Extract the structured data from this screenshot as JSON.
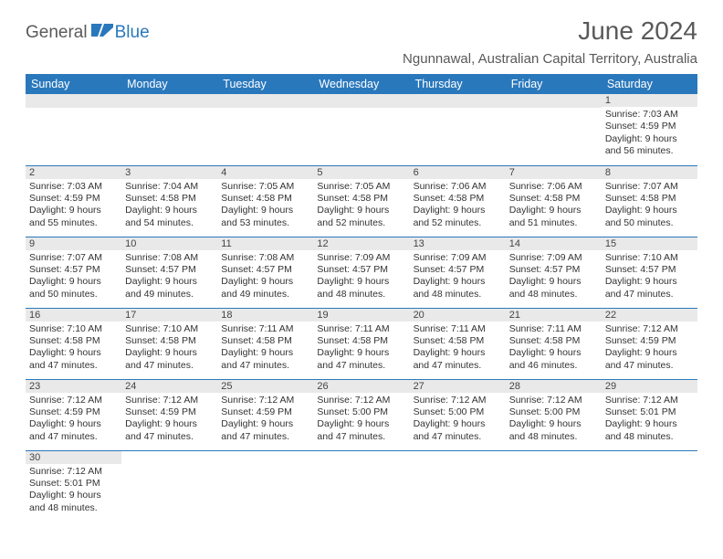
{
  "logo": {
    "part1": "General",
    "part2": "Blue"
  },
  "title": "June 2024",
  "location": "Ngunnawal, Australian Capital Territory, Australia",
  "colors": {
    "header_bg": "#2a78bc",
    "header_text": "#ffffff",
    "daynum_bg": "#e9e9e9",
    "row_border": "#2a78bc",
    "title_color": "#595959",
    "body_text": "#333333"
  },
  "day_headers": [
    "Sunday",
    "Monday",
    "Tuesday",
    "Wednesday",
    "Thursday",
    "Friday",
    "Saturday"
  ],
  "weeks": [
    [
      null,
      null,
      null,
      null,
      null,
      null,
      {
        "n": "1",
        "sunrise": "Sunrise: 7:03 AM",
        "sunset": "Sunset: 4:59 PM",
        "dl1": "Daylight: 9 hours",
        "dl2": "and 56 minutes."
      }
    ],
    [
      {
        "n": "2",
        "sunrise": "Sunrise: 7:03 AM",
        "sunset": "Sunset: 4:59 PM",
        "dl1": "Daylight: 9 hours",
        "dl2": "and 55 minutes."
      },
      {
        "n": "3",
        "sunrise": "Sunrise: 7:04 AM",
        "sunset": "Sunset: 4:58 PM",
        "dl1": "Daylight: 9 hours",
        "dl2": "and 54 minutes."
      },
      {
        "n": "4",
        "sunrise": "Sunrise: 7:05 AM",
        "sunset": "Sunset: 4:58 PM",
        "dl1": "Daylight: 9 hours",
        "dl2": "and 53 minutes."
      },
      {
        "n": "5",
        "sunrise": "Sunrise: 7:05 AM",
        "sunset": "Sunset: 4:58 PM",
        "dl1": "Daylight: 9 hours",
        "dl2": "and 52 minutes."
      },
      {
        "n": "6",
        "sunrise": "Sunrise: 7:06 AM",
        "sunset": "Sunset: 4:58 PM",
        "dl1": "Daylight: 9 hours",
        "dl2": "and 52 minutes."
      },
      {
        "n": "7",
        "sunrise": "Sunrise: 7:06 AM",
        "sunset": "Sunset: 4:58 PM",
        "dl1": "Daylight: 9 hours",
        "dl2": "and 51 minutes."
      },
      {
        "n": "8",
        "sunrise": "Sunrise: 7:07 AM",
        "sunset": "Sunset: 4:58 PM",
        "dl1": "Daylight: 9 hours",
        "dl2": "and 50 minutes."
      }
    ],
    [
      {
        "n": "9",
        "sunrise": "Sunrise: 7:07 AM",
        "sunset": "Sunset: 4:57 PM",
        "dl1": "Daylight: 9 hours",
        "dl2": "and 50 minutes."
      },
      {
        "n": "10",
        "sunrise": "Sunrise: 7:08 AM",
        "sunset": "Sunset: 4:57 PM",
        "dl1": "Daylight: 9 hours",
        "dl2": "and 49 minutes."
      },
      {
        "n": "11",
        "sunrise": "Sunrise: 7:08 AM",
        "sunset": "Sunset: 4:57 PM",
        "dl1": "Daylight: 9 hours",
        "dl2": "and 49 minutes."
      },
      {
        "n": "12",
        "sunrise": "Sunrise: 7:09 AM",
        "sunset": "Sunset: 4:57 PM",
        "dl1": "Daylight: 9 hours",
        "dl2": "and 48 minutes."
      },
      {
        "n": "13",
        "sunrise": "Sunrise: 7:09 AM",
        "sunset": "Sunset: 4:57 PM",
        "dl1": "Daylight: 9 hours",
        "dl2": "and 48 minutes."
      },
      {
        "n": "14",
        "sunrise": "Sunrise: 7:09 AM",
        "sunset": "Sunset: 4:57 PM",
        "dl1": "Daylight: 9 hours",
        "dl2": "and 48 minutes."
      },
      {
        "n": "15",
        "sunrise": "Sunrise: 7:10 AM",
        "sunset": "Sunset: 4:57 PM",
        "dl1": "Daylight: 9 hours",
        "dl2": "and 47 minutes."
      }
    ],
    [
      {
        "n": "16",
        "sunrise": "Sunrise: 7:10 AM",
        "sunset": "Sunset: 4:58 PM",
        "dl1": "Daylight: 9 hours",
        "dl2": "and 47 minutes."
      },
      {
        "n": "17",
        "sunrise": "Sunrise: 7:10 AM",
        "sunset": "Sunset: 4:58 PM",
        "dl1": "Daylight: 9 hours",
        "dl2": "and 47 minutes."
      },
      {
        "n": "18",
        "sunrise": "Sunrise: 7:11 AM",
        "sunset": "Sunset: 4:58 PM",
        "dl1": "Daylight: 9 hours",
        "dl2": "and 47 minutes."
      },
      {
        "n": "19",
        "sunrise": "Sunrise: 7:11 AM",
        "sunset": "Sunset: 4:58 PM",
        "dl1": "Daylight: 9 hours",
        "dl2": "and 47 minutes."
      },
      {
        "n": "20",
        "sunrise": "Sunrise: 7:11 AM",
        "sunset": "Sunset: 4:58 PM",
        "dl1": "Daylight: 9 hours",
        "dl2": "and 47 minutes."
      },
      {
        "n": "21",
        "sunrise": "Sunrise: 7:11 AM",
        "sunset": "Sunset: 4:58 PM",
        "dl1": "Daylight: 9 hours",
        "dl2": "and 46 minutes."
      },
      {
        "n": "22",
        "sunrise": "Sunrise: 7:12 AM",
        "sunset": "Sunset: 4:59 PM",
        "dl1": "Daylight: 9 hours",
        "dl2": "and 47 minutes."
      }
    ],
    [
      {
        "n": "23",
        "sunrise": "Sunrise: 7:12 AM",
        "sunset": "Sunset: 4:59 PM",
        "dl1": "Daylight: 9 hours",
        "dl2": "and 47 minutes."
      },
      {
        "n": "24",
        "sunrise": "Sunrise: 7:12 AM",
        "sunset": "Sunset: 4:59 PM",
        "dl1": "Daylight: 9 hours",
        "dl2": "and 47 minutes."
      },
      {
        "n": "25",
        "sunrise": "Sunrise: 7:12 AM",
        "sunset": "Sunset: 4:59 PM",
        "dl1": "Daylight: 9 hours",
        "dl2": "and 47 minutes."
      },
      {
        "n": "26",
        "sunrise": "Sunrise: 7:12 AM",
        "sunset": "Sunset: 5:00 PM",
        "dl1": "Daylight: 9 hours",
        "dl2": "and 47 minutes."
      },
      {
        "n": "27",
        "sunrise": "Sunrise: 7:12 AM",
        "sunset": "Sunset: 5:00 PM",
        "dl1": "Daylight: 9 hours",
        "dl2": "and 47 minutes."
      },
      {
        "n": "28",
        "sunrise": "Sunrise: 7:12 AM",
        "sunset": "Sunset: 5:00 PM",
        "dl1": "Daylight: 9 hours",
        "dl2": "and 48 minutes."
      },
      {
        "n": "29",
        "sunrise": "Sunrise: 7:12 AM",
        "sunset": "Sunset: 5:01 PM",
        "dl1": "Daylight: 9 hours",
        "dl2": "and 48 minutes."
      }
    ],
    [
      {
        "n": "30",
        "sunrise": "Sunrise: 7:12 AM",
        "sunset": "Sunset: 5:01 PM",
        "dl1": "Daylight: 9 hours",
        "dl2": "and 48 minutes."
      },
      null,
      null,
      null,
      null,
      null,
      null
    ]
  ]
}
